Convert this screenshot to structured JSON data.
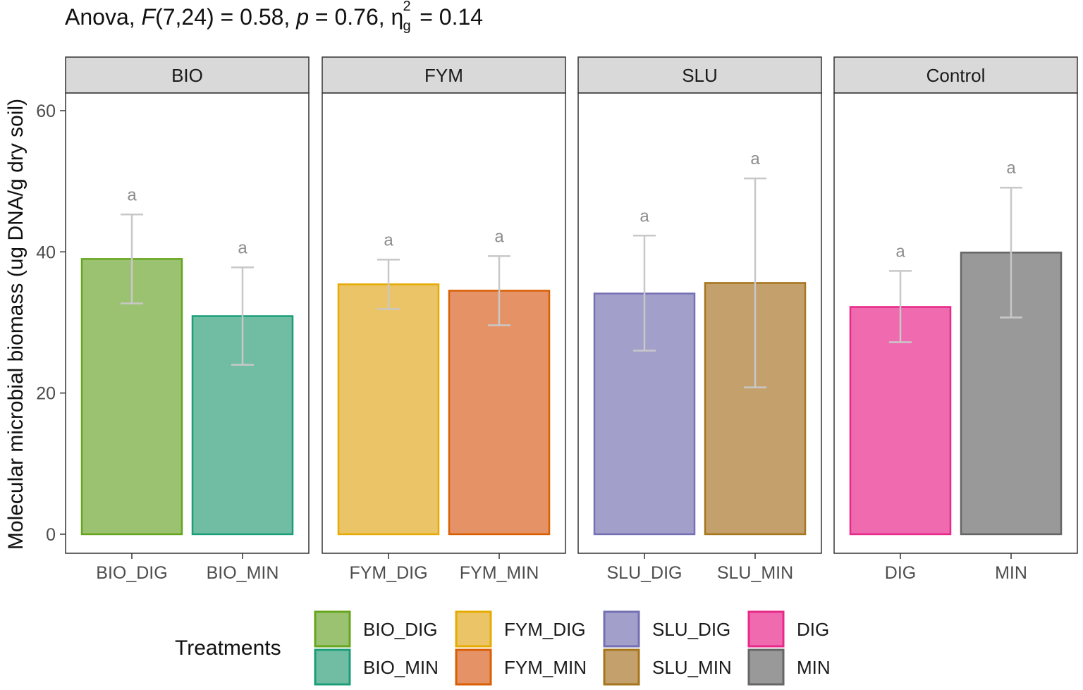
{
  "title": {
    "prefix": "Anova, ",
    "stat_symbol": "F",
    "stat_args": "(7,24) = 0.58, ",
    "p_symbol": "p",
    "p_text": " = 0.76, ",
    "eta_symbol": "η",
    "eta_sup": "2",
    "eta_sub": "g",
    "eta_text": " = 0.14"
  },
  "chart_data": {
    "type": "bar",
    "ylabel": "Molecular microbial biomass (ug DNA/g dry soil)",
    "xlabel": "",
    "ylim": [
      -2.7,
      62.5
    ],
    "yticks": [
      0,
      20,
      40,
      60
    ],
    "grid": false,
    "error_color": "#c8c8c8",
    "facets": [
      {
        "label": "BIO",
        "bars": [
          {
            "category": "BIO_DIG",
            "value": 39.0,
            "err_low": 32.7,
            "err_high": 45.3,
            "letter": "a",
            "fill": "#9bc270",
            "stroke": "#66a61e"
          },
          {
            "category": "BIO_MIN",
            "value": 30.9,
            "err_low": 24.0,
            "err_high": 37.8,
            "letter": "a",
            "fill": "#70bda3",
            "stroke": "#1b9e77"
          }
        ]
      },
      {
        "label": "FYM",
        "bars": [
          {
            "category": "FYM_DIG",
            "value": 35.4,
            "err_low": 31.9,
            "err_high": 38.9,
            "letter": "a",
            "fill": "#ebc467",
            "stroke": "#e6ab02"
          },
          {
            "category": "FYM_MIN",
            "value": 34.5,
            "err_low": 29.6,
            "err_high": 39.4,
            "letter": "a",
            "fill": "#e59366",
            "stroke": "#d95f02"
          }
        ]
      },
      {
        "label": "SLU",
        "bars": [
          {
            "category": "SLU_DIG",
            "value": 34.1,
            "err_low": 26.0,
            "err_high": 42.3,
            "letter": "a",
            "fill": "#a39fcb",
            "stroke": "#7570b3"
          },
          {
            "category": "SLU_MIN",
            "value": 35.6,
            "err_low": 20.8,
            "err_high": 50.4,
            "letter": "a",
            "fill": "#c4a06c",
            "stroke": "#a6761d"
          }
        ]
      },
      {
        "label": "Control",
        "bars": [
          {
            "category": "DIG",
            "value": 32.2,
            "err_low": 27.2,
            "err_high": 37.3,
            "letter": "a",
            "fill": "#ef6aae",
            "stroke": "#e7298a"
          },
          {
            "category": "MIN",
            "value": 39.9,
            "err_low": 30.7,
            "err_high": 49.1,
            "letter": "a",
            "fill": "#999999",
            "stroke": "#666666"
          }
        ]
      }
    ],
    "legend": {
      "title": "Treatments",
      "position": "bottom",
      "items": [
        {
          "label": "BIO_DIG",
          "fill": "#9bc270",
          "stroke": "#66a61e"
        },
        {
          "label": "BIO_MIN",
          "fill": "#70bda3",
          "stroke": "#1b9e77"
        },
        {
          "label": "FYM_DIG",
          "fill": "#ebc467",
          "stroke": "#e6ab02"
        },
        {
          "label": "FYM_MIN",
          "fill": "#e59366",
          "stroke": "#d95f02"
        },
        {
          "label": "SLU_DIG",
          "fill": "#a39fcb",
          "stroke": "#7570b3"
        },
        {
          "label": "SLU_MIN",
          "fill": "#c4a06c",
          "stroke": "#a6761d"
        },
        {
          "label": "DIG",
          "fill": "#ef6aae",
          "stroke": "#e7298a"
        },
        {
          "label": "MIN",
          "fill": "#999999",
          "stroke": "#666666"
        }
      ]
    }
  }
}
